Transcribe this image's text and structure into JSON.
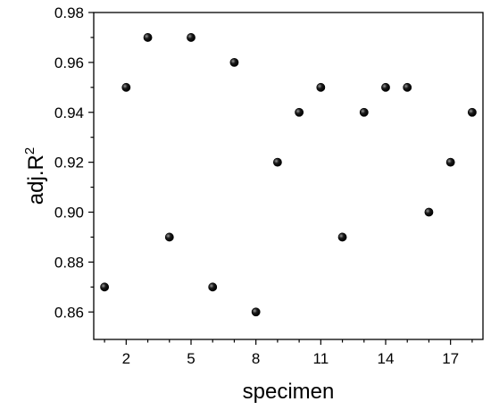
{
  "chart_data": {
    "type": "scatter",
    "xlabel": "specimen",
    "ylabel_main": "adj.R",
    "ylabel_superscript": "2",
    "xlim": [
      0.5,
      18.5
    ],
    "ylim": [
      0.849,
      0.98
    ],
    "xticks": [
      2,
      5,
      8,
      11,
      14,
      17
    ],
    "yticks": [
      0.86,
      0.88,
      0.9,
      0.92,
      0.94,
      0.96,
      0.98
    ],
    "ytick_labels": [
      "0.86",
      "0.88",
      "0.90",
      "0.92",
      "0.94",
      "0.96",
      "0.98"
    ],
    "grid": false,
    "marker_color": "#000000",
    "x": [
      1,
      2,
      3,
      4,
      5,
      6,
      7,
      8,
      9,
      10,
      11,
      12,
      13,
      14,
      15,
      16,
      17,
      18
    ],
    "y": [
      0.87,
      0.95,
      0.97,
      0.89,
      0.97,
      0.87,
      0.96,
      0.86,
      0.92,
      0.94,
      0.95,
      0.89,
      0.94,
      0.95,
      0.95,
      0.9,
      0.92,
      0.94
    ]
  }
}
